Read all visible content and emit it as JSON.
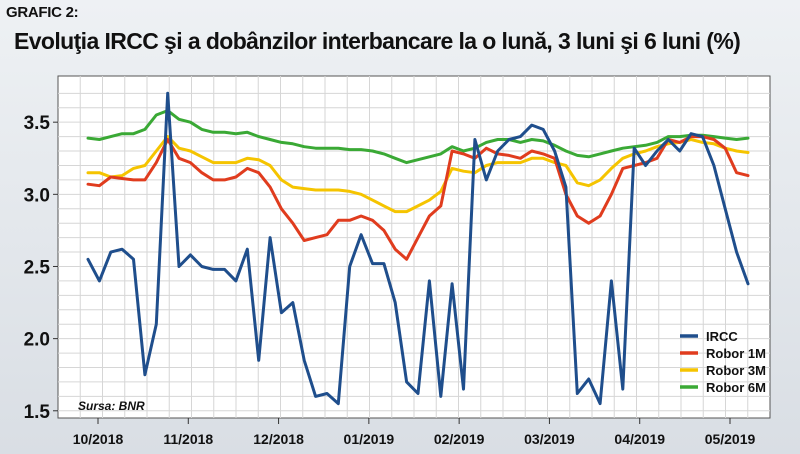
{
  "figure_label": "GRAFIC 2:",
  "source": "Sursa: BNR",
  "chart_data": {
    "type": "line",
    "title": "Evoluţia IRCC şi a dobânzilor interbancare la o lună, 3 luni şi 6 luni (%)",
    "xlabel": "",
    "ylabel": "",
    "x_tick_labels": [
      "10/2018",
      "11/2018",
      "12/2018",
      "01/2019",
      "02/2019",
      "03/2019",
      "04/2019",
      "05/2019"
    ],
    "y_ticks": [
      "1.5",
      "2.0",
      "2.5",
      "3.0",
      "3.5"
    ],
    "ylim": [
      1.45,
      3.82
    ],
    "x": [
      0,
      4,
      8,
      12,
      16,
      20,
      24,
      28,
      32,
      36,
      40,
      44,
      48,
      52,
      56,
      60,
      64,
      68,
      72,
      76,
      80,
      84,
      88,
      92,
      96,
      100,
      104,
      108,
      112,
      116,
      120,
      124,
      128,
      132,
      136,
      140,
      144,
      148,
      152,
      156,
      160,
      164,
      168,
      172,
      176,
      180,
      184,
      188,
      192,
      196,
      200,
      204,
      208,
      212,
      216,
      220,
      224,
      228,
      232
    ],
    "grid": true,
    "legend_position": "bottom-right",
    "series": [
      {
        "name": "IRCC",
        "color": "#1f4e8c",
        "values": [
          2.55,
          2.4,
          2.6,
          2.62,
          2.55,
          1.75,
          2.1,
          3.7,
          2.5,
          2.58,
          2.5,
          2.48,
          2.48,
          2.4,
          2.62,
          1.85,
          2.7,
          2.18,
          2.25,
          1.85,
          1.6,
          1.62,
          1.55,
          2.5,
          2.72,
          2.52,
          2.52,
          2.25,
          1.7,
          1.62,
          2.4,
          1.6,
          2.38,
          1.65,
          3.38,
          3.1,
          3.3,
          3.38,
          3.4,
          3.48,
          3.45,
          3.3,
          3.05,
          1.62,
          1.72,
          1.55,
          2.4,
          1.65,
          3.32,
          3.2,
          3.3,
          3.38,
          3.3,
          3.42,
          3.4,
          3.2,
          2.9,
          2.6,
          2.38
        ]
      },
      {
        "name": "Robor 1M",
        "color": "#e03c1e",
        "values": [
          3.07,
          3.06,
          3.12,
          3.11,
          3.1,
          3.1,
          3.22,
          3.38,
          3.25,
          3.22,
          3.15,
          3.1,
          3.1,
          3.12,
          3.18,
          3.15,
          3.05,
          2.9,
          2.8,
          2.68,
          2.7,
          2.72,
          2.82,
          2.82,
          2.85,
          2.82,
          2.75,
          2.62,
          2.55,
          2.7,
          2.85,
          2.92,
          3.3,
          3.28,
          3.25,
          3.32,
          3.28,
          3.27,
          3.25,
          3.3,
          3.28,
          3.25,
          3.0,
          2.85,
          2.8,
          2.85,
          3.0,
          3.18,
          3.2,
          3.22,
          3.25,
          3.38,
          3.36,
          3.4,
          3.4,
          3.38,
          3.32,
          3.15,
          3.13
        ]
      },
      {
        "name": "Robor 3M",
        "color": "#f5c400",
        "values": [
          3.15,
          3.15,
          3.12,
          3.13,
          3.18,
          3.2,
          3.3,
          3.4,
          3.32,
          3.3,
          3.26,
          3.22,
          3.22,
          3.22,
          3.25,
          3.24,
          3.2,
          3.1,
          3.05,
          3.04,
          3.03,
          3.03,
          3.03,
          3.02,
          3.0,
          2.96,
          2.92,
          2.88,
          2.88,
          2.92,
          2.96,
          3.02,
          3.18,
          3.16,
          3.15,
          3.2,
          3.22,
          3.22,
          3.22,
          3.25,
          3.25,
          3.22,
          3.2,
          3.08,
          3.06,
          3.1,
          3.18,
          3.25,
          3.28,
          3.3,
          3.33,
          3.35,
          3.36,
          3.38,
          3.36,
          3.35,
          3.32,
          3.3,
          3.29
        ]
      },
      {
        "name": "Robor 6M",
        "color": "#3aa935",
        "values": [
          3.39,
          3.38,
          3.4,
          3.42,
          3.42,
          3.45,
          3.55,
          3.58,
          3.52,
          3.5,
          3.45,
          3.43,
          3.43,
          3.42,
          3.43,
          3.4,
          3.38,
          3.36,
          3.35,
          3.33,
          3.32,
          3.32,
          3.32,
          3.31,
          3.31,
          3.3,
          3.28,
          3.25,
          3.22,
          3.24,
          3.26,
          3.28,
          3.33,
          3.3,
          3.32,
          3.36,
          3.38,
          3.38,
          3.36,
          3.38,
          3.37,
          3.34,
          3.3,
          3.27,
          3.26,
          3.28,
          3.3,
          3.32,
          3.33,
          3.34,
          3.36,
          3.4,
          3.4,
          3.41,
          3.41,
          3.4,
          3.39,
          3.38,
          3.39
        ]
      }
    ]
  }
}
